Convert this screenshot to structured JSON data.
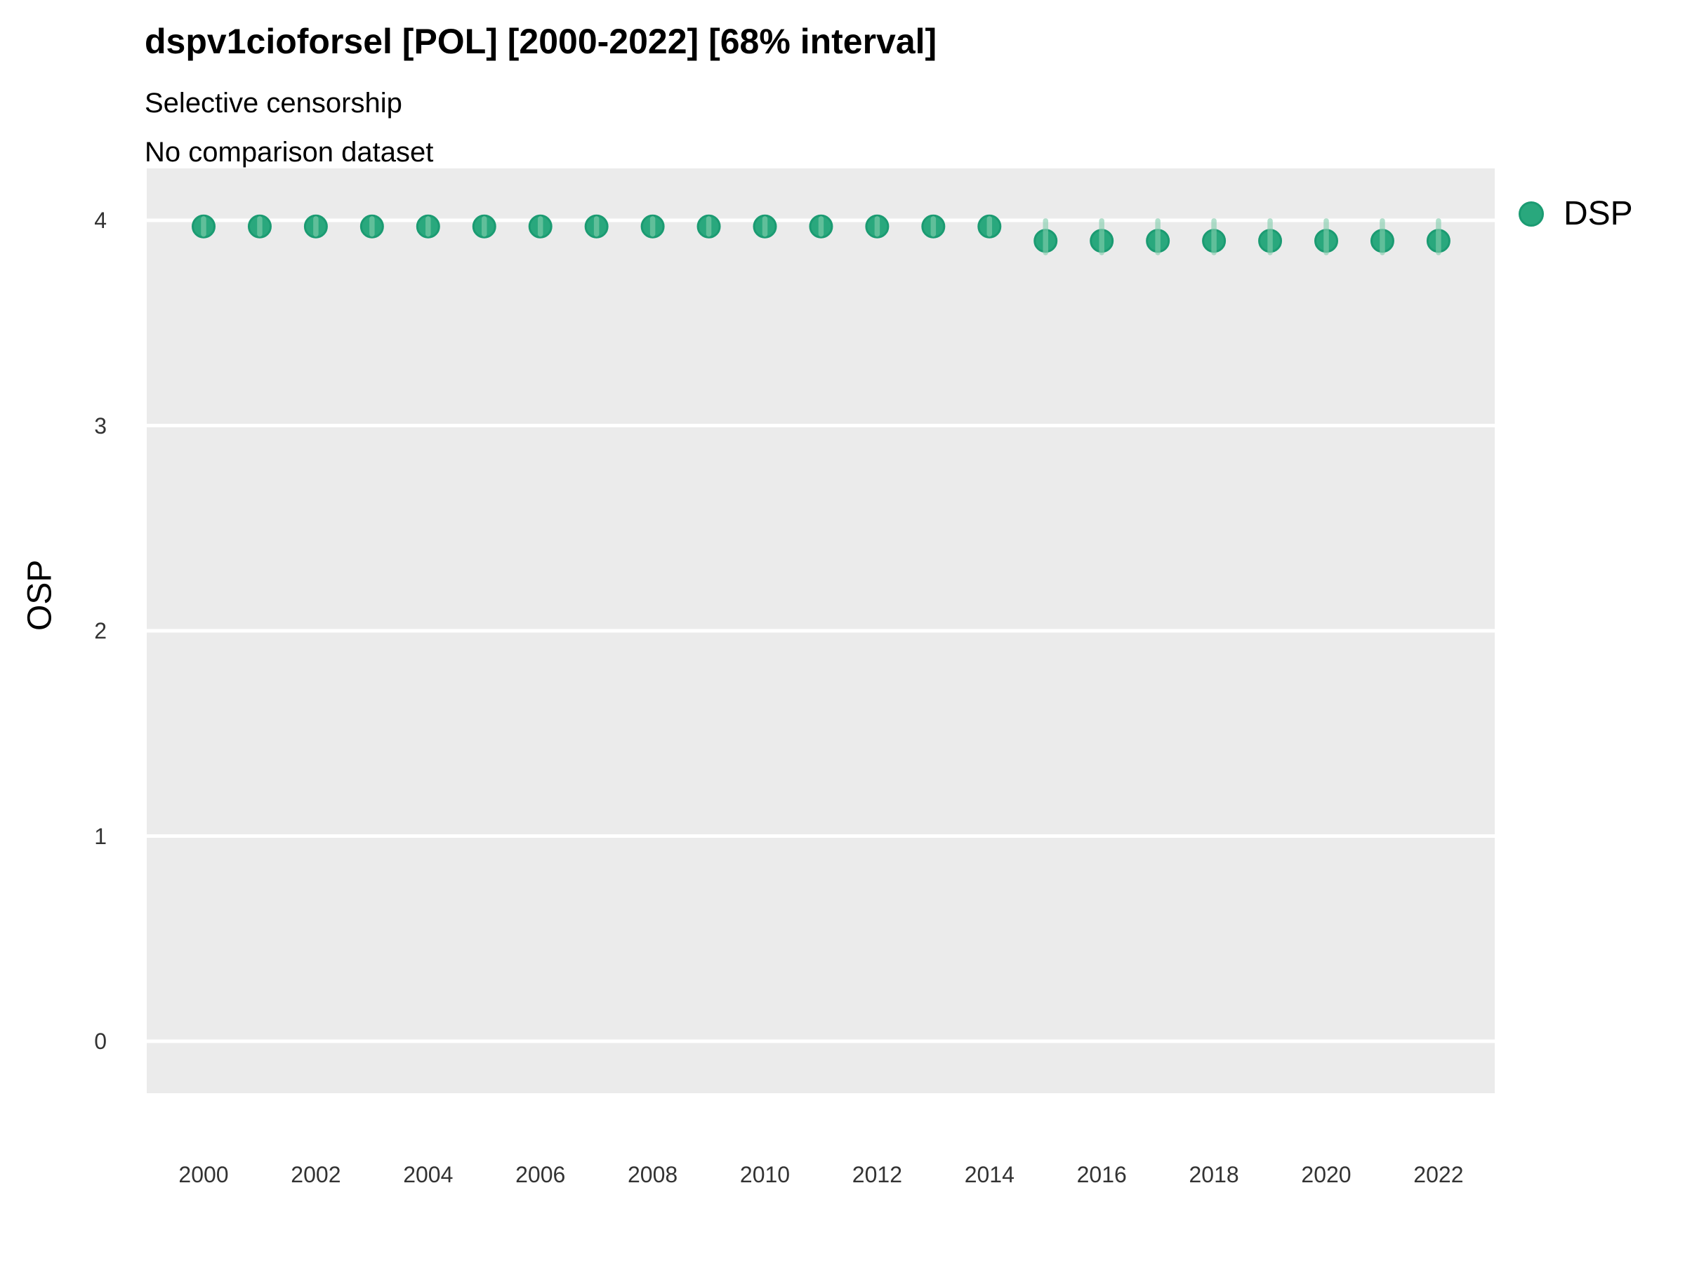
{
  "header": {
    "title": "dspv1cioforsel [POL] [2000-2022] [68% interval]",
    "subtitle_line1": "Selective censorship",
    "subtitle_line2": "No comparison dataset"
  },
  "axes": {
    "y_label": "OSP"
  },
  "legend": {
    "items": [
      {
        "label": "DSP",
        "color": "#29A87D"
      }
    ],
    "position": "right-top"
  },
  "colors": {
    "panel_background": "#EBEBEB",
    "gridline": "#FFFFFF",
    "point_fill": "#29A87D",
    "point_stroke": "#1B9B72",
    "interval_fill": "rgba(130,205,173,0.62)",
    "tick_text": "#333333",
    "title_text": "#000000"
  },
  "chart_data": {
    "type": "scatter",
    "title": "dspv1cioforsel [POL] [2000-2022] [68% interval]",
    "subtitle": [
      "Selective censorship",
      "No comparison dataset"
    ],
    "xlabel": "",
    "ylabel": "OSP",
    "interval_level": "68%",
    "grid": "horizontal-major-only",
    "legend_position": "right-top",
    "x": [
      2000,
      2001,
      2002,
      2003,
      2004,
      2005,
      2006,
      2007,
      2008,
      2009,
      2010,
      2011,
      2012,
      2013,
      2014,
      2015,
      2016,
      2017,
      2018,
      2019,
      2020,
      2021,
      2022
    ],
    "series": [
      {
        "name": "DSP",
        "values": [
          3.97,
          3.97,
          3.97,
          3.97,
          3.97,
          3.97,
          3.97,
          3.97,
          3.97,
          3.97,
          3.97,
          3.97,
          3.97,
          3.97,
          3.97,
          3.9,
          3.9,
          3.9,
          3.9,
          3.9,
          3.9,
          3.9,
          3.9
        ],
        "interval_low": [
          3.92,
          3.92,
          3.92,
          3.92,
          3.92,
          3.92,
          3.92,
          3.92,
          3.92,
          3.92,
          3.92,
          3.92,
          3.92,
          3.92,
          3.92,
          3.83,
          3.83,
          3.83,
          3.83,
          3.83,
          3.83,
          3.83,
          3.83
        ],
        "interval_high": [
          4.02,
          4.02,
          4.02,
          4.02,
          4.02,
          4.02,
          4.02,
          4.02,
          4.02,
          4.02,
          4.02,
          4.02,
          4.02,
          4.02,
          4.02,
          4.01,
          4.01,
          4.01,
          4.01,
          4.01,
          4.01,
          4.01,
          4.01
        ]
      }
    ],
    "xticks": [
      2000,
      2002,
      2004,
      2006,
      2008,
      2010,
      2012,
      2014,
      2016,
      2018,
      2020,
      2022
    ],
    "yticks": [
      0,
      1,
      2,
      3,
      4
    ],
    "xlim": [
      1999,
      2023
    ],
    "ylim": [
      -0.25,
      4.25
    ]
  }
}
